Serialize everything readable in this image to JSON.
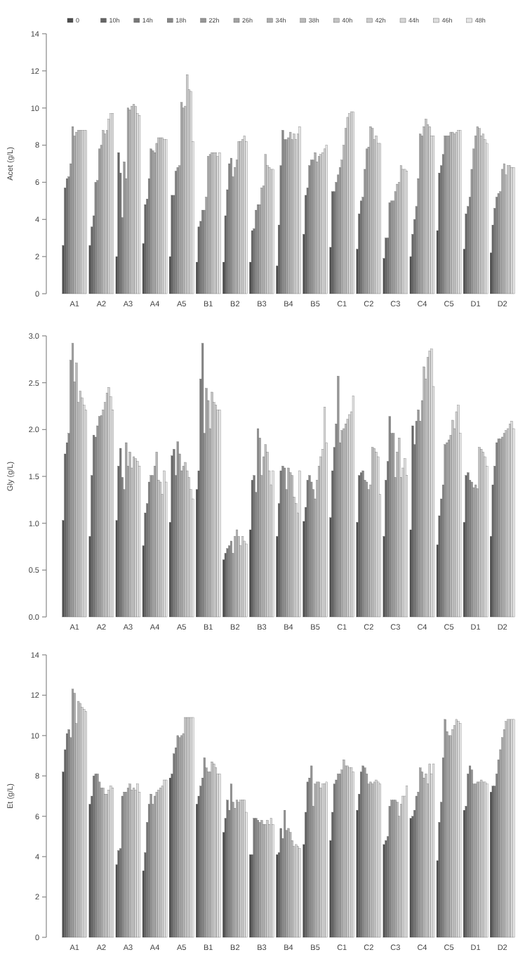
{
  "chart_data": [
    {
      "type": "bar",
      "ylabel": "Acet (g/L)",
      "legend": "top",
      "categories": [
        "A1",
        "A2",
        "A3",
        "A4",
        "A5",
        "B1",
        "B2",
        "B3",
        "B4",
        "B5",
        "C1",
        "C2",
        "C3",
        "C4",
        "C5",
        "D1",
        "D2"
      ],
      "ylim": [
        0,
        14
      ],
      "yticks": [
        0,
        2,
        4,
        6,
        8,
        10,
        12,
        14
      ],
      "series": [
        {
          "name": "0",
          "color": "#4d4d4d",
          "values": [
            2.6,
            2.6,
            2.0,
            2.7,
            2.0,
            1.7,
            1.7,
            1.7,
            1.5,
            3.2,
            2.5,
            2.4,
            1.9,
            2.0,
            3.4,
            2.4,
            2.2
          ]
        },
        {
          "name": "10h",
          "color": "#656565",
          "values": [
            5.7,
            3.6,
            7.6,
            4.8,
            5.3,
            3.6,
            4.2,
            3.4,
            3.7,
            5.3,
            5.5,
            4.3,
            3.0,
            3.2,
            6.5,
            4.3,
            3.7
          ]
        },
        {
          "name": "14h",
          "color": "#787878",
          "values": [
            6.2,
            4.2,
            6.5,
            5.1,
            5.3,
            3.9,
            5.6,
            3.5,
            6.9,
            5.7,
            5.5,
            5.0,
            3.0,
            4.0,
            6.9,
            4.7,
            4.6
          ]
        },
        {
          "name": "18h",
          "color": "#888888",
          "values": [
            6.3,
            6.0,
            4.1,
            6.2,
            6.6,
            4.5,
            7.0,
            4.5,
            8.8,
            6.9,
            6.0,
            5.2,
            4.9,
            4.7,
            7.5,
            5.2,
            5.2
          ]
        },
        {
          "name": "22h",
          "color": "#969696",
          "values": [
            7.0,
            6.1,
            7.1,
            7.8,
            6.8,
            4.5,
            7.3,
            4.8,
            8.3,
            7.2,
            6.4,
            6.7,
            5.0,
            6.2,
            8.5,
            6.7,
            5.4
          ]
        },
        {
          "name": "26h",
          "color": "#a3a3a3",
          "values": [
            9.0,
            7.8,
            6.2,
            7.7,
            6.9,
            5.2,
            6.3,
            4.8,
            8.3,
            7.2,
            6.8,
            7.8,
            5.0,
            8.6,
            8.5,
            7.8,
            5.5
          ]
        },
        {
          "name": "34h",
          "color": "#aeaeae",
          "values": [
            8.5,
            8.0,
            10.0,
            7.6,
            10.3,
            7.4,
            6.8,
            5.7,
            8.4,
            7.6,
            7.2,
            7.9,
            5.5,
            8.5,
            8.5,
            8.5,
            6.7
          ]
        },
        {
          "name": "38h",
          "color": "#b9b9b9",
          "values": [
            8.7,
            8.8,
            9.9,
            8.1,
            10.0,
            7.5,
            7.2,
            5.8,
            8.7,
            7.1,
            8.0,
            9.0,
            5.9,
            9.0,
            8.7,
            9.0,
            7.0
          ]
        },
        {
          "name": "40h",
          "color": "#c3c3c3",
          "values": [
            8.8,
            8.6,
            10.1,
            8.4,
            10.1,
            7.6,
            8.2,
            7.5,
            8.3,
            7.4,
            8.9,
            8.9,
            6.0,
            9.4,
            8.7,
            8.9,
            6.4
          ]
        },
        {
          "name": "42h",
          "color": "#cccccc",
          "values": [
            8.8,
            8.8,
            10.2,
            8.4,
            11.8,
            7.6,
            8.2,
            6.9,
            8.6,
            7.5,
            9.5,
            8.3,
            6.9,
            9.1,
            8.6,
            8.5,
            6.9
          ]
        },
        {
          "name": "44h",
          "color": "#d5d5d5",
          "values": [
            8.8,
            9.4,
            10.1,
            8.4,
            11.0,
            7.6,
            8.3,
            6.8,
            8.3,
            7.6,
            9.7,
            8.5,
            6.7,
            9.0,
            8.7,
            8.6,
            6.9
          ]
        },
        {
          "name": "46h",
          "color": "#dddddd",
          "values": [
            8.8,
            9.7,
            9.7,
            8.3,
            10.9,
            7.4,
            8.5,
            6.7,
            8.6,
            7.8,
            9.8,
            8.1,
            6.7,
            8.5,
            8.8,
            8.3,
            6.8
          ]
        },
        {
          "name": "48h",
          "color": "#e6e6e6",
          "values": [
            8.8,
            9.7,
            9.6,
            8.3,
            8.2,
            7.6,
            8.2,
            6.7,
            9.0,
            8.0,
            9.8,
            8.1,
            6.6,
            8.5,
            8.8,
            8.1,
            6.8
          ]
        }
      ]
    },
    {
      "type": "bar",
      "ylabel": "Gly (g/L)",
      "categories": [
        "A1",
        "A2",
        "A3",
        "A4",
        "A5",
        "B1",
        "B2",
        "B3",
        "B4",
        "B5",
        "C1",
        "C2",
        "C3",
        "C4",
        "C5",
        "D1",
        "D2"
      ],
      "ylim": [
        0,
        3
      ],
      "yticks": [
        {
          "value": 0,
          "label": "0.0"
        },
        {
          "value": 0.5,
          "label": "0.5"
        },
        {
          "value": 1,
          "label": "1.0"
        },
        {
          "value": 1.5,
          "label": "1.5"
        },
        {
          "value": 2,
          "label": "2.0"
        },
        {
          "value": 2.5,
          "label": "2.5"
        },
        {
          "value": 3,
          "label": "3.0"
        }
      ],
      "series": [
        {
          "color": "#4d4d4d",
          "values": [
            1.03,
            0.86,
            1.03,
            0.76,
            1.01,
            1.36,
            0.61,
            0.93,
            0.86,
            1.02,
            1.06,
            1.01,
            0.86,
            0.93,
            0.77,
            1.01,
            0.86
          ]
        },
        {
          "color": "#656565",
          "values": [
            1.74,
            1.51,
            1.61,
            1.11,
            1.72,
            1.56,
            0.68,
            1.46,
            1.21,
            1.17,
            1.56,
            1.51,
            1.46,
            2.04,
            1.08,
            1.51,
            1.41
          ]
        },
        {
          "color": "#787878",
          "values": [
            1.86,
            1.94,
            1.8,
            1.21,
            1.79,
            2.54,
            0.73,
            1.51,
            1.56,
            1.46,
            1.81,
            1.54,
            1.66,
            1.84,
            1.26,
            1.54,
            1.61
          ]
        },
        {
          "color": "#888888",
          "values": [
            1.96,
            1.92,
            1.49,
            1.44,
            1.51,
            2.92,
            0.76,
            1.33,
            1.61,
            1.51,
            2.06,
            1.56,
            2.14,
            2.09,
            1.41,
            1.46,
            1.86
          ]
        },
        {
          "color": "#969696",
          "values": [
            2.74,
            2.04,
            1.36,
            1.51,
            1.87,
            1.96,
            0.81,
            2.01,
            1.59,
            1.44,
            2.57,
            1.46,
            1.96,
            2.21,
            1.84,
            1.44,
            1.9
          ]
        },
        {
          "color": "#a3a3a3",
          "values": [
            2.92,
            2.14,
            1.86,
            1.51,
            1.74,
            2.44,
            0.68,
            1.91,
            1.36,
            1.36,
            1.86,
            1.44,
            1.96,
            2.09,
            1.86,
            1.38,
            1.9
          ]
        },
        {
          "color": "#aeaeae",
          "values": [
            2.51,
            2.15,
            1.61,
            1.61,
            1.56,
            2.31,
            0.86,
            1.51,
            1.59,
            1.26,
            1.99,
            1.36,
            1.49,
            2.31,
            1.89,
            1.41,
            1.92
          ]
        },
        {
          "color": "#b9b9b9",
          "values": [
            2.71,
            2.21,
            1.76,
            1.76,
            1.61,
            2.01,
            0.93,
            1.71,
            1.54,
            1.46,
            2.01,
            1.41,
            1.76,
            2.67,
            1.94,
            1.37,
            1.96
          ]
        },
        {
          "color": "#c3c3c3",
          "values": [
            2.29,
            2.29,
            1.59,
            1.46,
            1.65,
            2.4,
            0.86,
            1.84,
            1.51,
            1.61,
            2.06,
            1.81,
            1.91,
            2.54,
            2.1,
            1.81,
            1.99
          ]
        },
        {
          "color": "#cccccc",
          "values": [
            2.41,
            2.39,
            1.71,
            1.44,
            1.56,
            2.29,
            0.76,
            1.76,
            1.28,
            1.71,
            2.11,
            1.8,
            1.49,
            2.77,
            2.01,
            1.79,
            2.01
          ]
        },
        {
          "color": "#d5d5d5",
          "values": [
            2.34,
            2.45,
            1.69,
            1.31,
            1.49,
            2.26,
            0.86,
            1.56,
            1.21,
            1.79,
            2.16,
            1.76,
            1.59,
            2.84,
            2.19,
            1.76,
            2.06
          ]
        },
        {
          "color": "#dddddd",
          "values": [
            2.26,
            2.35,
            1.66,
            1.56,
            1.36,
            2.21,
            0.81,
            1.41,
            1.11,
            2.24,
            2.19,
            1.71,
            1.69,
            2.86,
            2.26,
            1.71,
            2.09
          ]
        },
        {
          "color": "#e6e6e6",
          "values": [
            2.21,
            2.21,
            1.61,
            1.44,
            1.26,
            2.21,
            0.78,
            1.56,
            1.56,
            1.86,
            2.36,
            1.31,
            1.51,
            2.46,
            1.96,
            1.61,
            2.01
          ]
        }
      ]
    },
    {
      "type": "bar",
      "ylabel": "Et (g/L)",
      "categories": [
        "A1",
        "A2",
        "A3",
        "A4",
        "A5",
        "B1",
        "B2",
        "B3",
        "B4",
        "B5",
        "C1",
        "C2",
        "C3",
        "C4",
        "C5",
        "D1",
        "D2"
      ],
      "ylim": [
        0,
        14
      ],
      "yticks": [
        0,
        2,
        4,
        6,
        8,
        10,
        12,
        14
      ],
      "series": [
        {
          "color": "#4d4d4d",
          "values": [
            8.2,
            6.6,
            3.6,
            3.3,
            7.9,
            6.6,
            5.2,
            4.1,
            4.1,
            4.6,
            4.8,
            6.3,
            4.6,
            5.9,
            3.8,
            6.3,
            7.2
          ]
        },
        {
          "color": "#656565",
          "values": [
            9.3,
            7.0,
            4.3,
            4.2,
            8.1,
            7.0,
            5.9,
            4.1,
            4.2,
            6.2,
            6.2,
            7.1,
            4.8,
            6.0,
            5.7,
            6.5,
            7.5
          ]
        },
        {
          "color": "#787878",
          "values": [
            10.1,
            8.0,
            4.4,
            5.7,
            9.1,
            7.5,
            6.8,
            5.9,
            5.4,
            7.7,
            7.6,
            8.2,
            5.0,
            6.3,
            6.7,
            8.1,
            7.5
          ]
        },
        {
          "color": "#888888",
          "values": [
            10.3,
            8.1,
            7.0,
            6.6,
            9.4,
            7.9,
            6.3,
            5.9,
            4.9,
            7.9,
            7.8,
            8.5,
            6.5,
            7.0,
            8.9,
            8.5,
            8.1
          ]
        },
        {
          "color": "#969696",
          "values": [
            9.9,
            8.1,
            7.2,
            7.1,
            10.0,
            8.9,
            7.6,
            5.8,
            6.3,
            8.5,
            8.1,
            8.4,
            6.8,
            7.2,
            10.8,
            8.3,
            8.8
          ]
        },
        {
          "color": "#a3a3a3",
          "values": [
            12.3,
            7.7,
            7.2,
            6.6,
            9.9,
            8.4,
            6.7,
            5.7,
            5.3,
            6.5,
            8.1,
            8.1,
            6.8,
            8.4,
            10.2,
            7.6,
            9.3
          ]
        },
        {
          "color": "#aeaeae",
          "values": [
            12.1,
            7.4,
            7.4,
            7.0,
            10.0,
            8.2,
            6.4,
            5.8,
            5.4,
            7.6,
            8.3,
            7.6,
            6.8,
            8.2,
            10.0,
            7.6,
            9.9
          ]
        },
        {
          "color": "#b9b9b9",
          "values": [
            10.6,
            7.4,
            7.6,
            7.2,
            10.1,
            8.2,
            6.8,
            5.6,
            5.2,
            7.7,
            8.8,
            7.7,
            6.7,
            7.9,
            10.0,
            7.7,
            10.3
          ]
        },
        {
          "color": "#c3c3c3",
          "values": [
            11.7,
            7.1,
            7.3,
            7.3,
            10.9,
            8.7,
            6.7,
            5.6,
            4.8,
            7.7,
            8.5,
            7.6,
            6.0,
            8.1,
            10.3,
            7.7,
            10.7
          ]
        },
        {
          "color": "#cccccc",
          "values": [
            11.6,
            7.1,
            7.4,
            7.4,
            10.9,
            8.6,
            6.8,
            5.8,
            4.5,
            7.4,
            8.5,
            7.7,
            6.6,
            7.6,
            10.5,
            7.8,
            10.8
          ]
        },
        {
          "color": "#d5d5d5",
          "values": [
            11.4,
            7.3,
            7.3,
            7.5,
            10.9,
            8.4,
            6.8,
            5.6,
            4.6,
            7.6,
            8.4,
            7.8,
            7.0,
            8.6,
            10.8,
            7.7,
            10.8
          ]
        },
        {
          "color": "#dddddd",
          "values": [
            11.3,
            7.5,
            7.6,
            7.8,
            10.9,
            8.1,
            6.8,
            5.9,
            4.5,
            7.6,
            8.4,
            7.7,
            7.0,
            8.1,
            10.7,
            7.7,
            10.8
          ]
        },
        {
          "color": "#e6e6e6",
          "values": [
            11.2,
            7.4,
            7.2,
            7.8,
            10.9,
            8.1,
            6.2,
            5.6,
            4.4,
            7.7,
            8.2,
            7.6,
            7.5,
            8.6,
            10.6,
            7.6,
            10.8
          ]
        }
      ]
    }
  ]
}
